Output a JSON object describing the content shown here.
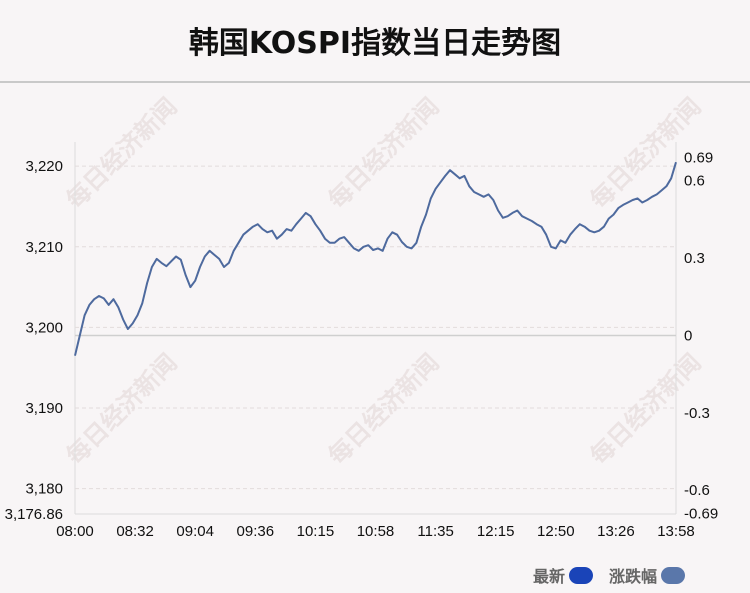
{
  "title": "韩国KOSPI指数当日走势图",
  "watermark_text": "每日经济新闻",
  "legend": [
    {
      "label": "最新",
      "color": "#1a44b8"
    },
    {
      "label": "涨跌幅",
      "color": "#5a77aa"
    }
  ],
  "colors": {
    "line": "#4e6a9e",
    "zero_line": "#cfcfcf",
    "grid": "#e2dcdc"
  },
  "chart_data": {
    "type": "line",
    "title": "韩国KOSPI指数当日走势图",
    "x_ticks": [
      "08:00",
      "08:32",
      "09:04",
      "09:36",
      "10:15",
      "10:58",
      "11:35",
      "12:15",
      "12:50",
      "13:26",
      "13:58"
    ],
    "y_left_ticks": [
      "3,220",
      "3,210",
      "3,200",
      "3,190",
      "3,180"
    ],
    "y_left_tick_values": [
      3220,
      3210,
      3200,
      3190,
      3180
    ],
    "y_left_min_label": "3,176.86",
    "ylim_left": [
      3176.86,
      3223.0
    ],
    "y_right_ticks": [
      "0.69",
      "0.6",
      "0.3",
      "0",
      "-0.3",
      "-0.6",
      "-0.69"
    ],
    "y_right_tick_values": [
      0.69,
      0.6,
      0.3,
      0,
      -0.3,
      -0.6,
      -0.69
    ],
    "reference_value": 3199.0,
    "grid": true,
    "series": [
      {
        "values": [
          3196.5,
          3199.0,
          3201.5,
          3202.8,
          3203.5,
          3203.9,
          3203.6,
          3202.8,
          3203.5,
          3202.5,
          3201.0,
          3199.8,
          3200.5,
          3201.5,
          3203.0,
          3205.5,
          3207.5,
          3208.5,
          3208.0,
          3207.6,
          3208.2,
          3208.8,
          3208.4,
          3206.5,
          3205.0,
          3205.8,
          3207.5,
          3208.8,
          3209.5,
          3209.0,
          3208.5,
          3207.5,
          3208.0,
          3209.5,
          3210.5,
          3211.5,
          3212.0,
          3212.5,
          3212.8,
          3212.2,
          3211.8,
          3212.0,
          3211.0,
          3211.5,
          3212.2,
          3212.0,
          3212.8,
          3213.5,
          3214.2,
          3213.8,
          3212.8,
          3212.0,
          3211.0,
          3210.5,
          3210.5,
          3211.0,
          3211.2,
          3210.5,
          3209.8,
          3209.5,
          3210.0,
          3210.2,
          3209.6,
          3209.8,
          3209.5,
          3211.0,
          3211.8,
          3211.5,
          3210.6,
          3210.0,
          3209.8,
          3210.5,
          3212.5,
          3214.0,
          3216.0,
          3217.2,
          3218.0,
          3218.8,
          3219.5,
          3219.0,
          3218.5,
          3218.8,
          3217.5,
          3216.8,
          3216.5,
          3216.2,
          3216.5,
          3215.8,
          3214.5,
          3213.6,
          3213.8,
          3214.2,
          3214.5,
          3213.8,
          3213.5,
          3213.2,
          3212.8,
          3212.5,
          3211.5,
          3210.0,
          3209.8,
          3210.8,
          3210.5,
          3211.5,
          3212.2,
          3212.8,
          3212.5,
          3212.0,
          3211.8,
          3212.0,
          3212.5,
          3213.5,
          3214.0,
          3214.8,
          3215.2,
          3215.5,
          3215.8,
          3216.0,
          3215.5,
          3215.8,
          3216.2,
          3216.5,
          3217.0,
          3217.5,
          3218.5,
          3220.5
        ]
      }
    ]
  }
}
